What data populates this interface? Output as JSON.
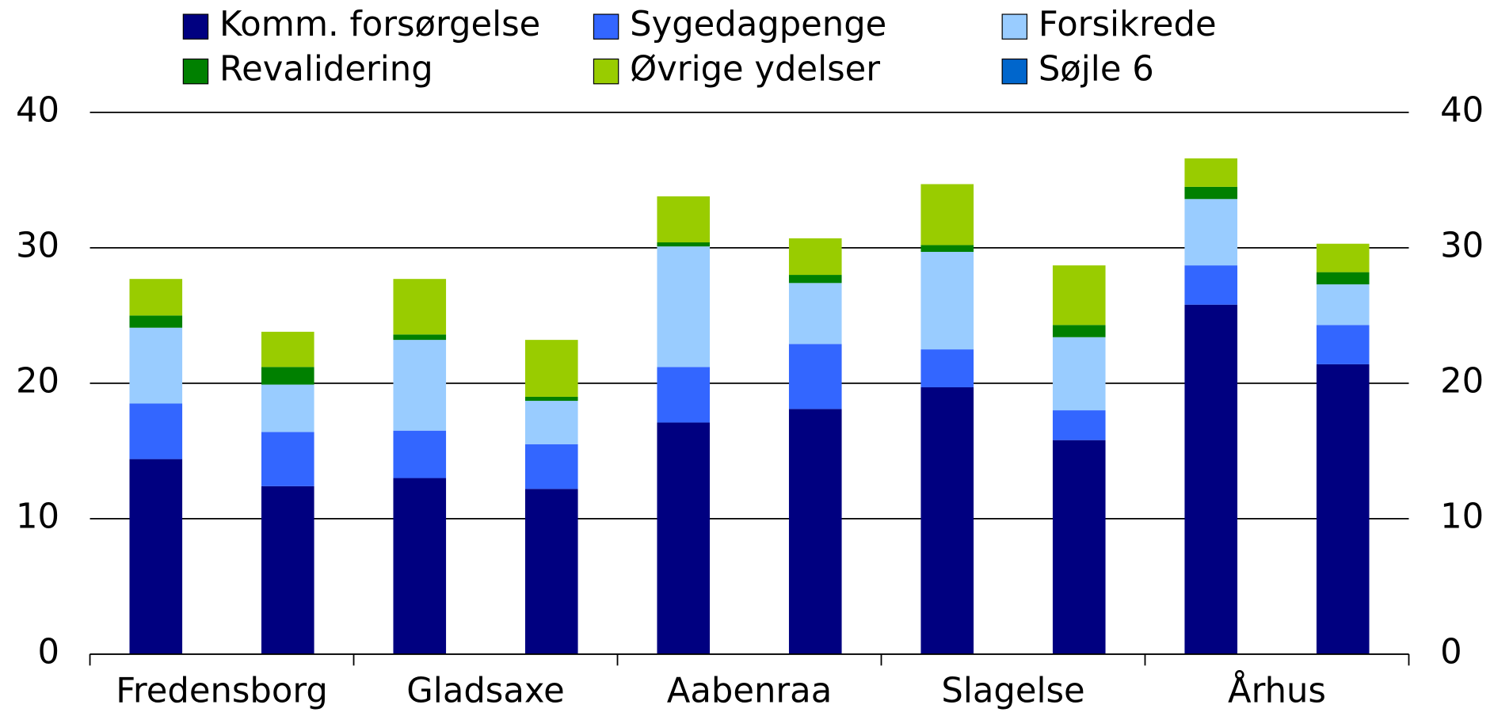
{
  "chart_data": {
    "type": "bar",
    "stacked": true,
    "categories": [
      "Fredensborg",
      null,
      "Gladsaxe",
      null,
      "Aabenraa",
      null,
      "Slagelse",
      null,
      "Århus",
      null
    ],
    "series": [
      {
        "name": "Komm. forsørgelse",
        "color": "#000080",
        "values": [
          14.4,
          12.4,
          13.0,
          12.2,
          17.1,
          18.1,
          19.7,
          15.8,
          25.8,
          21.4
        ]
      },
      {
        "name": "Sygedagpenge",
        "color": "#3366ff",
        "values": [
          4.1,
          4.0,
          3.5,
          3.3,
          4.1,
          4.8,
          2.8,
          2.2,
          2.9,
          2.9
        ]
      },
      {
        "name": "Forsikrede",
        "color": "#99ccff",
        "values": [
          5.6,
          3.5,
          6.7,
          3.2,
          8.9,
          4.5,
          7.2,
          5.4,
          4.9,
          3.0
        ]
      },
      {
        "name": "Revalidering",
        "color": "#008000",
        "values": [
          0.9,
          1.3,
          0.4,
          0.3,
          0.3,
          0.6,
          0.5,
          0.9,
          0.9,
          0.9
        ]
      },
      {
        "name": "Øvrige ydelser",
        "color": "#99cc00",
        "values": [
          2.7,
          2.6,
          4.1,
          4.2,
          3.4,
          2.7,
          4.5,
          4.4,
          2.1,
          2.1
        ]
      },
      {
        "name": "Søjle 6",
        "color": "#0066cc",
        "values": [
          0,
          0,
          0,
          0,
          0,
          0,
          0,
          0,
          0,
          0
        ]
      }
    ],
    "ylim": [
      0,
      40
    ],
    "yticks": [
      0,
      10,
      20,
      30,
      40
    ],
    "grid": true
  }
}
